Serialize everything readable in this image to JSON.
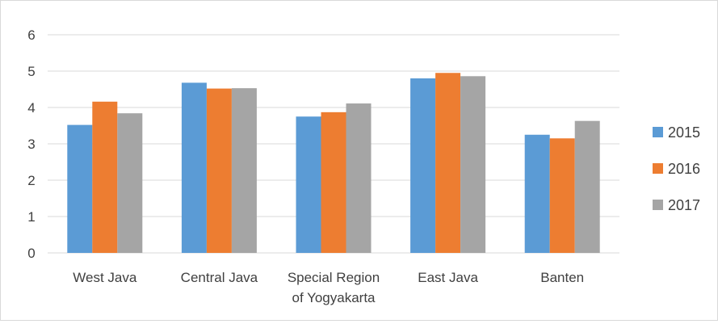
{
  "chart_data": {
    "type": "bar",
    "title": "",
    "xlabel": "",
    "ylabel": "",
    "categories": [
      "West Java",
      "Central Java",
      "Special Region of Yogyakarta",
      "East Java",
      "Banten"
    ],
    "category_label_lines": [
      [
        "West Java"
      ],
      [
        "Central Java"
      ],
      [
        "Special Region",
        "of Yogyakarta"
      ],
      [
        "East Java"
      ],
      [
        "Banten"
      ]
    ],
    "series": [
      {
        "name": "2015",
        "color": "#5b9bd5",
        "values": [
          3.52,
          4.68,
          3.75,
          4.8,
          3.25
        ]
      },
      {
        "name": "2016",
        "color": "#ed7d31",
        "values": [
          4.16,
          4.52,
          3.87,
          4.95,
          3.15
        ]
      },
      {
        "name": "2017",
        "color": "#a5a5a5",
        "values": [
          3.84,
          4.53,
          4.11,
          4.86,
          3.63
        ]
      }
    ],
    "yticks": [
      "0",
      "1",
      "2",
      "3",
      "4",
      "5",
      "6"
    ],
    "ylim": [
      0,
      6
    ],
    "grid": true,
    "legend_position": "right"
  }
}
